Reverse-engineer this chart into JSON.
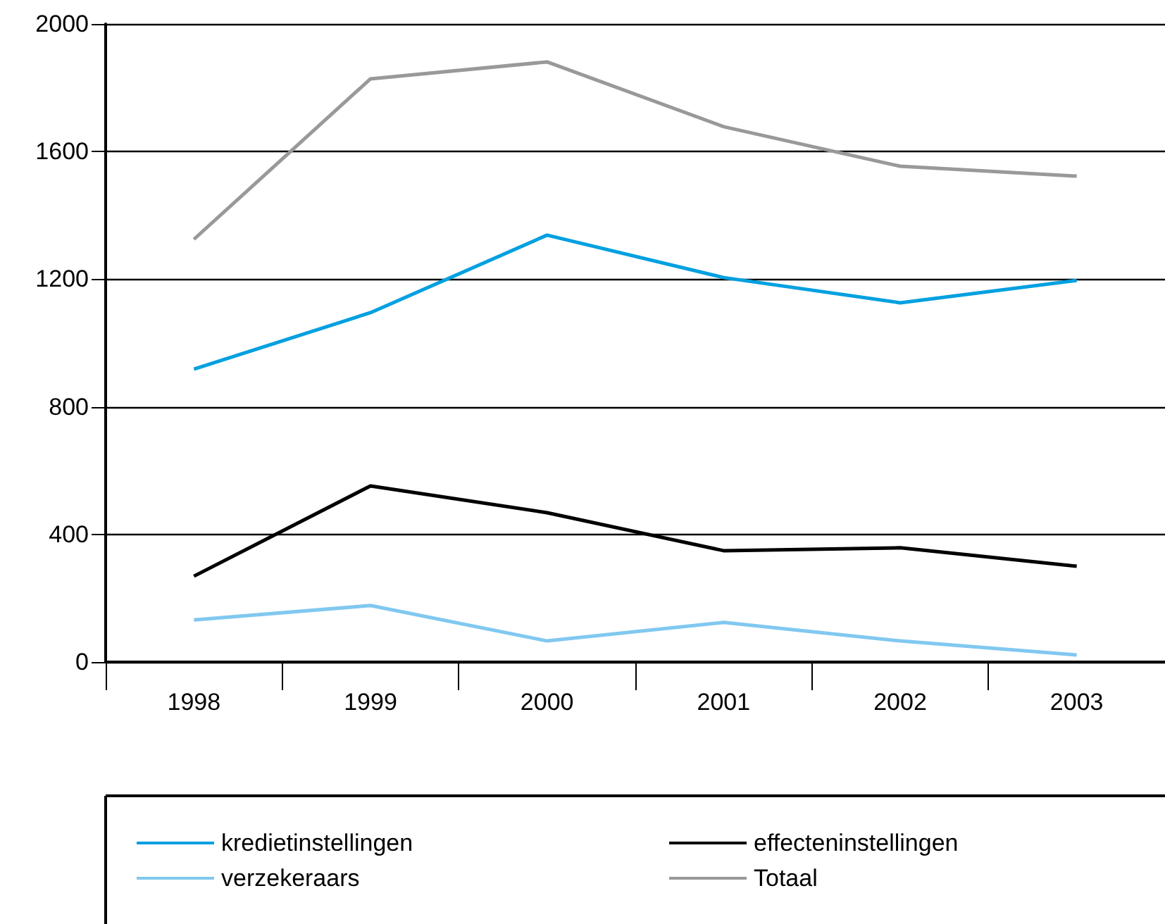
{
  "chart_data": {
    "type": "line",
    "categories": [
      "1998",
      "1999",
      "2000",
      "2001",
      "2002",
      "2003"
    ],
    "series": [
      {
        "name": "kredietinstellingen",
        "color": "#00a0e0",
        "values": [
          918,
          1095,
          1338,
          1205,
          1126,
          1196
        ]
      },
      {
        "name": "effecteninstellingen",
        "color": "#000000",
        "values": [
          269,
          552,
          468,
          349,
          358,
          300
        ]
      },
      {
        "name": "verzekeraars",
        "color": "#80c8f0",
        "values": [
          132,
          177,
          66,
          124,
          66,
          22
        ]
      },
      {
        "name": "Totaal",
        "color": "#999999",
        "values": [
          1325,
          1828,
          1881,
          1678,
          1554,
          1523
        ]
      }
    ],
    "ylim": [
      0,
      2000
    ],
    "yticks": [
      0,
      400,
      800,
      1200,
      1600,
      2000
    ],
    "grid": "y",
    "legend": "bottom",
    "marker": "none",
    "line_style": "solid"
  }
}
